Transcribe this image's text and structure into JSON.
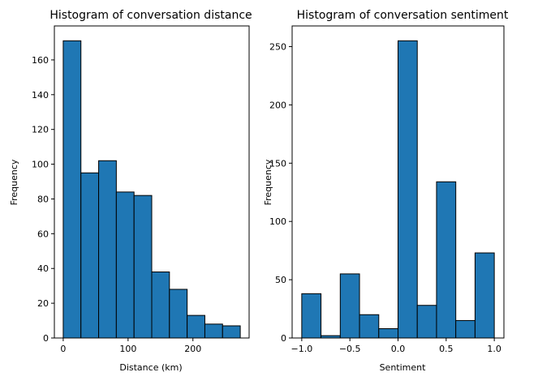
{
  "chart_data": [
    {
      "type": "bar",
      "title": "Histogram of conversation distance",
      "xlabel": "Distance (km)",
      "ylabel": "Frequency",
      "bin_edges": [
        0,
        27.3,
        54.6,
        81.9,
        109.2,
        136.5,
        163.8,
        191.1,
        218.4,
        245.7,
        273
      ],
      "values": [
        171,
        95,
        102,
        84,
        82,
        38,
        28,
        13,
        8,
        7
      ],
      "xlim": [
        -13.65,
        286.65
      ],
      "ylim": [
        0,
        179.55
      ],
      "xticks": [
        0,
        100,
        200
      ],
      "xtick_labels": [
        "0",
        "100",
        "200"
      ],
      "yticks": [
        0,
        20,
        40,
        60,
        80,
        100,
        120,
        140,
        160
      ],
      "ytick_labels": [
        "0",
        "20",
        "40",
        "60",
        "80",
        "100",
        "120",
        "140",
        "160"
      ],
      "grid": false,
      "bar_color": "#1f77b4",
      "edge_color": "#000000"
    },
    {
      "type": "bar",
      "title": "Histogram of conversation sentiment",
      "xlabel": "Sentiment",
      "ylabel": "Frequency",
      "bin_edges": [
        -1.0,
        -0.8,
        -0.6,
        -0.4,
        -0.2,
        0.0,
        0.2,
        0.4,
        0.6,
        0.8,
        1.0
      ],
      "values": [
        38,
        2,
        55,
        20,
        8,
        255,
        28,
        134,
        15,
        73
      ],
      "xlim": [
        -1.1,
        1.1
      ],
      "ylim": [
        0,
        267.75
      ],
      "xticks": [
        -1.0,
        -0.5,
        0.0,
        0.5,
        1.0
      ],
      "xtick_labels": [
        "−1.0",
        "−0.5",
        "0.0",
        "0.5",
        "1.0"
      ],
      "yticks": [
        0,
        50,
        100,
        150,
        200,
        250
      ],
      "ytick_labels": [
        "0",
        "50",
        "100",
        "150",
        "200",
        "250"
      ],
      "grid": false,
      "bar_color": "#1f77b4",
      "edge_color": "#000000"
    }
  ]
}
